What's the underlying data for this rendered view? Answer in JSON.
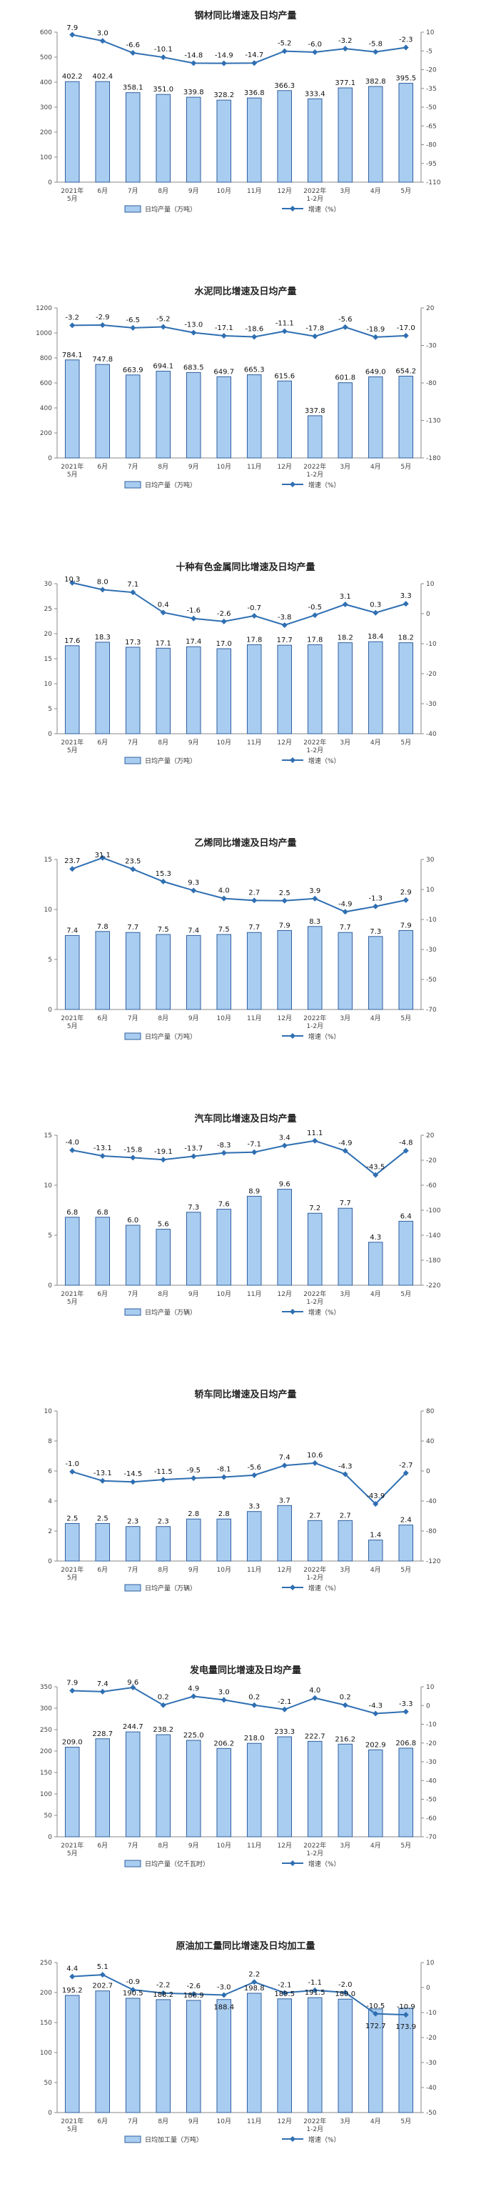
{
  "chart_data": [
    {
      "type": "bar",
      "title": "钢材同比增速及日均产量",
      "categories": [
        "2021年\n5月",
        "6月",
        "7月",
        "8月",
        "9月",
        "10月",
        "11月",
        "12月",
        "2022年\n1-2月",
        "3月",
        "4月",
        "5月"
      ],
      "series": [
        {
          "name": "日均产量（万吨）",
          "type": "bar",
          "axis": "left",
          "values": [
            402.2,
            402.4,
            358.1,
            351.0,
            339.8,
            328.2,
            336.8,
            366.3,
            333.4,
            377.1,
            382.8,
            395.5
          ]
        },
        {
          "name": "增速（%）",
          "type": "line",
          "axis": "right",
          "values": [
            7.9,
            3.0,
            -6.6,
            -10.1,
            -14.8,
            -14.9,
            -14.7,
            -5.2,
            -6.0,
            -3.2,
            -5.8,
            -2.3
          ]
        }
      ],
      "left_axis": {
        "min": 0,
        "max": 600,
        "ticks": [
          0,
          100,
          200,
          300,
          400,
          500,
          600
        ]
      },
      "right_axis": {
        "min": -110,
        "max": 10,
        "ticks": [
          10,
          -5,
          -20,
          -35,
          -50,
          -65,
          -80,
          -95,
          -110
        ]
      },
      "legend_placement": "bottom"
    },
    {
      "type": "bar",
      "title": "水泥同比增速及日均产量",
      "categories": [
        "2021年\n5月",
        "6月",
        "7月",
        "8月",
        "9月",
        "10月",
        "11月",
        "12月",
        "2022年\n1-2月",
        "3月",
        "4月",
        "5月"
      ],
      "series": [
        {
          "name": "日均产量（万吨）",
          "type": "bar",
          "axis": "left",
          "values": [
            784.1,
            747.8,
            663.9,
            694.1,
            683.5,
            649.7,
            665.3,
            615.6,
            337.8,
            601.8,
            649.0,
            654.2
          ]
        },
        {
          "name": "增速（%）",
          "type": "line",
          "axis": "right",
          "values": [
            -3.2,
            -2.9,
            -6.5,
            -5.2,
            -13.0,
            -17.1,
            -18.6,
            -11.1,
            -17.8,
            -5.6,
            -18.9,
            -17.0
          ]
        }
      ],
      "left_axis": {
        "min": 0,
        "max": 1200,
        "ticks": [
          0,
          200,
          400,
          600,
          800,
          1000,
          1200
        ]
      },
      "right_axis": {
        "min": -180,
        "max": 20,
        "ticks": [
          20,
          -30,
          -80,
          -130,
          -180
        ]
      },
      "legend_placement": "bottom"
    },
    {
      "type": "bar",
      "title": "十种有色金属同比增速及日均产量",
      "categories": [
        "2021年\n5月",
        "6月",
        "7月",
        "8月",
        "9月",
        "10月",
        "11月",
        "12月",
        "2022年\n1-2月",
        "3月",
        "4月",
        "5月"
      ],
      "series": [
        {
          "name": "日均产量（万吨）",
          "type": "bar",
          "axis": "left",
          "values": [
            17.6,
            18.3,
            17.3,
            17.1,
            17.4,
            17.0,
            17.8,
            17.7,
            17.8,
            18.2,
            18.4,
            18.2
          ]
        },
        {
          "name": "增速（%）",
          "type": "line",
          "axis": "right",
          "values": [
            10.3,
            8.0,
            7.1,
            0.4,
            -1.6,
            -2.6,
            -0.7,
            -3.8,
            -0.5,
            3.1,
            0.3,
            3.3
          ]
        }
      ],
      "left_axis": {
        "min": 0,
        "max": 30,
        "ticks": [
          0,
          5,
          10,
          15,
          20,
          25,
          30
        ]
      },
      "right_axis": {
        "min": -40,
        "max": 10,
        "ticks": [
          10,
          0,
          -10,
          -20,
          -30,
          -40
        ]
      },
      "legend_placement": "bottom"
    },
    {
      "type": "bar",
      "title": "乙烯同比增速及日均产量",
      "categories": [
        "2021年\n5月",
        "6月",
        "7月",
        "8月",
        "9月",
        "10月",
        "11月",
        "12月",
        "2022年\n1-2月",
        "3月",
        "4月",
        "5月"
      ],
      "series": [
        {
          "name": "日均产量（万吨）",
          "type": "bar",
          "axis": "left",
          "values": [
            7.4,
            7.8,
            7.7,
            7.5,
            7.4,
            7.5,
            7.7,
            7.9,
            8.3,
            7.7,
            7.3,
            7.9
          ]
        },
        {
          "name": "增速（%）",
          "type": "line",
          "axis": "right",
          "values": [
            23.7,
            31.1,
            23.5,
            15.3,
            9.3,
            4.0,
            2.7,
            2.5,
            3.9,
            -4.9,
            -1.3,
            2.9
          ]
        }
      ],
      "left_axis": {
        "min": 0,
        "max": 15,
        "ticks": [
          0,
          5,
          10,
          15
        ]
      },
      "right_axis": {
        "min": -70,
        "max": 30,
        "ticks": [
          30,
          10,
          -10,
          -30,
          -50,
          -70
        ]
      },
      "legend_placement": "bottom"
    },
    {
      "type": "bar",
      "title": "汽车同比增速及日均产量",
      "categories": [
        "2021年\n5月",
        "6月",
        "7月",
        "8月",
        "9月",
        "10月",
        "11月",
        "12月",
        "2022年\n1-2月",
        "3月",
        "4月",
        "5月"
      ],
      "series": [
        {
          "name": "日均产量（万辆）",
          "type": "bar",
          "axis": "left",
          "values": [
            6.8,
            6.8,
            6.0,
            5.6,
            7.3,
            7.6,
            8.9,
            9.6,
            7.2,
            7.7,
            4.3,
            6.4
          ]
        },
        {
          "name": "增速（%）",
          "type": "line",
          "axis": "right",
          "values": [
            -4.0,
            -13.1,
            -15.8,
            -19.1,
            -13.7,
            -8.3,
            -7.1,
            3.4,
            11.1,
            -4.9,
            -43.5,
            -4.8
          ]
        }
      ],
      "left_axis": {
        "min": 0,
        "max": 15,
        "ticks": [
          0,
          5,
          10,
          15
        ]
      },
      "right_axis": {
        "min": -220,
        "max": 20,
        "ticks": [
          20,
          -20,
          -60,
          -100,
          -140,
          -180,
          -220
        ]
      },
      "legend_placement": "bottom"
    },
    {
      "type": "bar",
      "title": "轿车同比增速及日均产量",
      "categories": [
        "2021年\n5月",
        "6月",
        "7月",
        "8月",
        "9月",
        "10月",
        "11月",
        "12月",
        "2022年\n1-2月",
        "3月",
        "4月",
        "5月"
      ],
      "series": [
        {
          "name": "日均产量（万辆）",
          "type": "bar",
          "axis": "left",
          "values": [
            2.5,
            2.5,
            2.3,
            2.3,
            2.8,
            2.8,
            3.3,
            3.7,
            2.7,
            2.7,
            1.4,
            2.4
          ]
        },
        {
          "name": "增速（%）",
          "type": "line",
          "axis": "right",
          "values": [
            -1.0,
            -13.1,
            -14.5,
            -11.5,
            -9.5,
            -8.1,
            -5.6,
            7.4,
            10.6,
            -4.3,
            -43.9,
            -2.7
          ]
        }
      ],
      "left_axis": {
        "min": 0,
        "max": 10,
        "ticks": [
          0,
          2,
          4,
          6,
          8,
          10
        ]
      },
      "right_axis": {
        "min": -120,
        "max": 80,
        "ticks": [
          80,
          40,
          0,
          -40,
          -80,
          -120
        ]
      },
      "legend_placement": "bottom"
    },
    {
      "type": "bar",
      "title": "发电量同比增速及日均产量",
      "categories": [
        "2021年\n5月",
        "6月",
        "7月",
        "8月",
        "9月",
        "10月",
        "11月",
        "12月",
        "2022年\n1-2月",
        "3月",
        "4月",
        "5月"
      ],
      "series": [
        {
          "name": "日均产量（亿千瓦时）",
          "type": "bar",
          "axis": "left",
          "values": [
            209.0,
            228.7,
            244.7,
            238.2,
            225.0,
            206.2,
            218.0,
            233.3,
            222.7,
            216.2,
            202.9,
            206.8
          ]
        },
        {
          "name": "增速（%）",
          "type": "line",
          "axis": "right",
          "values": [
            7.9,
            7.4,
            9.6,
            0.2,
            4.9,
            3.0,
            0.2,
            -2.1,
            4.0,
            0.2,
            -4.3,
            -3.3
          ]
        }
      ],
      "left_axis": {
        "min": 0,
        "max": 350,
        "ticks": [
          0,
          50,
          100,
          150,
          200,
          250,
          300,
          350
        ]
      },
      "right_axis": {
        "min": -70,
        "max": 10,
        "ticks": [
          10,
          0,
          -10,
          -20,
          -30,
          -40,
          -50,
          -60,
          -70
        ]
      },
      "legend_placement": "bottom"
    },
    {
      "type": "bar",
      "title": "原油加工量同比增速及日均加工量",
      "categories": [
        "2021年\n5月",
        "6月",
        "7月",
        "8月",
        "9月",
        "10月",
        "11月",
        "12月",
        "2022年\n1-2月",
        "3月",
        "4月",
        "5月"
      ],
      "series": [
        {
          "name": "日均加工量（万吨）",
          "type": "bar",
          "axis": "left",
          "values": [
            195.2,
            202.7,
            190.5,
            188.2,
            186.9,
            188.4,
            198.8,
            189.5,
            191.5,
            189.0,
            172.7,
            173.9
          ]
        },
        {
          "name": "增速（%）",
          "type": "line",
          "axis": "right",
          "values": [
            4.4,
            5.1,
            -0.9,
            -2.2,
            -2.6,
            -3.0,
            2.2,
            -2.1,
            -1.1,
            -2.0,
            -10.5,
            -10.9
          ]
        }
      ],
      "left_axis": {
        "min": 0,
        "max": 250,
        "ticks": [
          0,
          50,
          100,
          150,
          200,
          250
        ]
      },
      "right_axis": {
        "min": -50,
        "max": 10,
        "ticks": [
          10,
          0,
          -10,
          -20,
          -30,
          -40,
          -50
        ]
      },
      "legend_placement": "bottom"
    }
  ],
  "colors": {
    "bar_fill": "#a9cdf0",
    "bar_stroke": "#2f5f9e",
    "line": "#2f6fb2",
    "axis": "#888888"
  }
}
